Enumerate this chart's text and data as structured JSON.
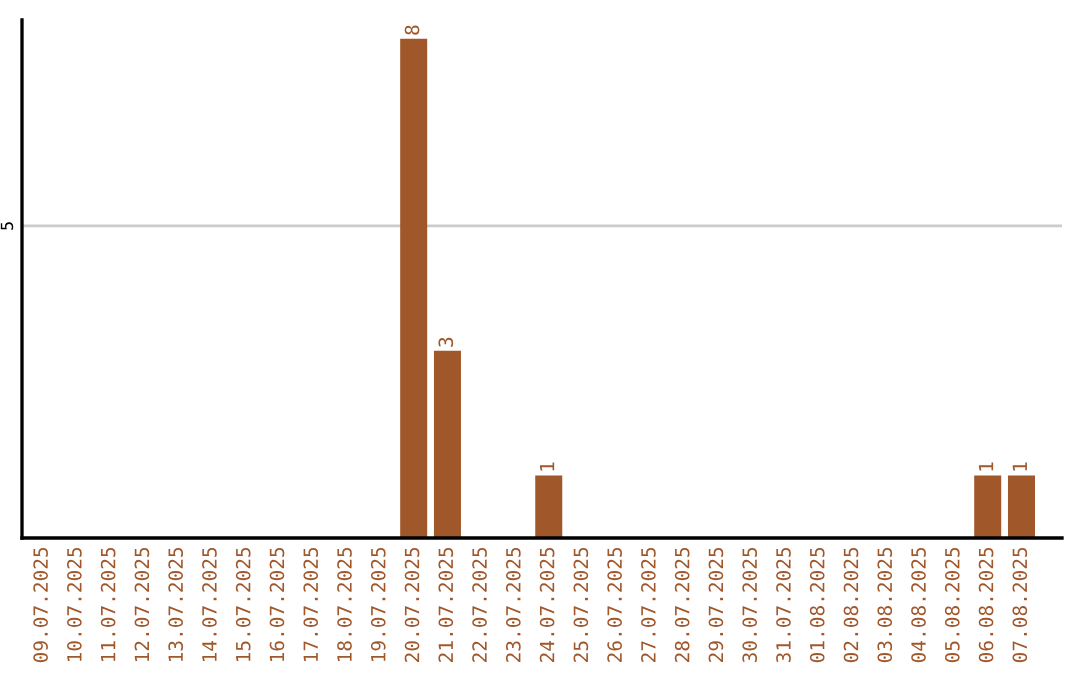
{
  "chart_data": {
    "type": "bar",
    "categories": [
      "09.07.2025",
      "10.07.2025",
      "11.07.2025",
      "12.07.2025",
      "13.07.2025",
      "14.07.2025",
      "15.07.2025",
      "16.07.2025",
      "17.07.2025",
      "18.07.2025",
      "19.07.2025",
      "20.07.2025",
      "21.07.2025",
      "22.07.2025",
      "23.07.2025",
      "24.07.2025",
      "25.07.2025",
      "26.07.2025",
      "27.07.2025",
      "28.07.2025",
      "29.07.2025",
      "30.07.2025",
      "31.07.2025",
      "01.08.2025",
      "02.08.2025",
      "03.08.2025",
      "04.08.2025",
      "05.08.2025",
      "06.08.2025",
      "07.08.2025"
    ],
    "values": [
      0,
      0,
      0,
      0,
      0,
      0,
      0,
      0,
      0,
      0,
      0,
      8,
      3,
      0,
      0,
      1,
      0,
      0,
      0,
      0,
      0,
      0,
      0,
      0,
      0,
      0,
      0,
      0,
      1,
      1
    ],
    "value_labels": [
      null,
      null,
      null,
      null,
      null,
      null,
      null,
      null,
      null,
      null,
      null,
      "8",
      "3",
      null,
      null,
      "1",
      null,
      null,
      null,
      null,
      null,
      null,
      null,
      null,
      null,
      null,
      null,
      null,
      "1",
      "1"
    ],
    "color": "#a0572a",
    "ylim": [
      0,
      8.3
    ],
    "yticks": [
      5
    ],
    "grid": "y"
  }
}
